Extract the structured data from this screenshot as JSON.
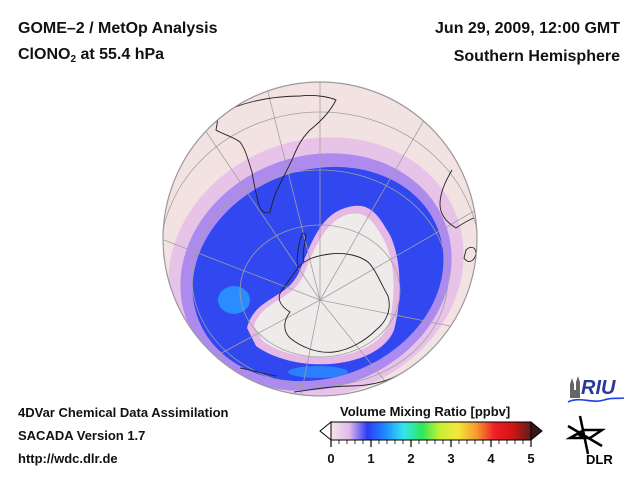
{
  "header": {
    "title_line1": "GOME–2 / MetOp Analysis",
    "species_main": "ClONO",
    "species_sub": "2",
    "species_rest": " at 55.4 hPa",
    "date": "Jun 29, 2009, 12:00 GMT",
    "hemisphere": "Southern Hemisphere"
  },
  "footer": {
    "line1": "4DVar Chemical Data Assimilation",
    "line2": "SACADA Version 1.7",
    "line3": "http://wdc.dlr.de"
  },
  "colorbar": {
    "title": "Volume Mixing Ratio [ppbv]",
    "min": 0,
    "max": 5,
    "tick_labels": [
      "0",
      "1",
      "2",
      "3",
      "4",
      "5"
    ],
    "colors": [
      "#f3e6e6",
      "#e4b8e8",
      "#2a3cf5",
      "#1f8cff",
      "#33e6f0",
      "#2ee65a",
      "#c8f032",
      "#f5e63a",
      "#f59a30",
      "#f01e28",
      "#d21414",
      "#5a1e1e"
    ],
    "extend": "both"
  },
  "map": {
    "projection": "orthographic",
    "center": "South Pole",
    "field_colors": {
      "background_low": "#f2e2e2",
      "pink": "#e3b2e6",
      "violet": "#8f6cf0",
      "blue": "#3147f0",
      "light_blue": "#2a8cff",
      "vortex_interior": "#efebeb"
    }
  },
  "logos": {
    "riu": "RIU",
    "dlr": "DLR"
  }
}
